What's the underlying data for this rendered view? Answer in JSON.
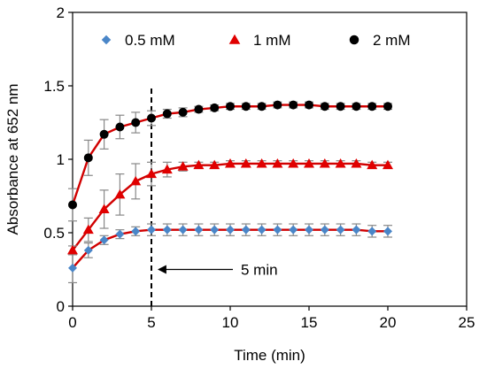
{
  "chart_data": {
    "type": "line",
    "xlabel": "Time (min)",
    "ylabel": "Absorbance at 652 nm",
    "xlim": [
      0,
      25
    ],
    "ylim": [
      0,
      2
    ],
    "x_ticks": [
      0,
      5,
      10,
      15,
      20,
      25
    ],
    "y_ticks": [
      0,
      0.5,
      1,
      1.5,
      2
    ],
    "y_tick_labels": [
      "0",
      "0.5",
      "1",
      "1.5",
      "2"
    ],
    "grid": false,
    "legend_position": "top",
    "x": [
      0,
      1,
      2,
      3,
      4,
      5,
      6,
      7,
      8,
      9,
      10,
      11,
      12,
      13,
      14,
      15,
      16,
      17,
      18,
      19,
      20
    ],
    "series": [
      {
        "name": "0.5 mM",
        "color": "#4a86c8",
        "marker": "diamond",
        "values": [
          0.26,
          0.38,
          0.45,
          0.49,
          0.51,
          0.52,
          0.52,
          0.52,
          0.52,
          0.52,
          0.52,
          0.52,
          0.52,
          0.52,
          0.52,
          0.52,
          0.52,
          0.52,
          0.52,
          0.51,
          0.51
        ],
        "errors": [
          0.1,
          0.05,
          0.03,
          0.03,
          0.03,
          0.04,
          0.04,
          0.04,
          0.04,
          0.04,
          0.04,
          0.04,
          0.04,
          0.04,
          0.04,
          0.04,
          0.04,
          0.04,
          0.04,
          0.04,
          0.04
        ]
      },
      {
        "name": "1 mM",
        "color": "#e00000",
        "marker": "triangle",
        "values": [
          0.38,
          0.52,
          0.66,
          0.76,
          0.85,
          0.9,
          0.93,
          0.95,
          0.96,
          0.96,
          0.97,
          0.97,
          0.97,
          0.97,
          0.97,
          0.97,
          0.97,
          0.97,
          0.97,
          0.96,
          0.96
        ],
        "errors": [
          0.03,
          0.08,
          0.13,
          0.14,
          0.12,
          0.08,
          0.05,
          0.03,
          0.02,
          0.02,
          0.02,
          0.02,
          0.02,
          0.02,
          0.02,
          0.02,
          0.02,
          0.02,
          0.02,
          0.02,
          0.02
        ]
      },
      {
        "name": "2 mM",
        "color": "#000000",
        "marker": "circle",
        "values": [
          0.69,
          1.01,
          1.17,
          1.22,
          1.25,
          1.28,
          1.31,
          1.32,
          1.34,
          1.35,
          1.36,
          1.36,
          1.36,
          1.37,
          1.37,
          1.37,
          1.36,
          1.36,
          1.36,
          1.36,
          1.36
        ],
        "errors": [
          0.11,
          0.12,
          0.1,
          0.08,
          0.07,
          0.05,
          0.03,
          0.03,
          0.02,
          0.02,
          0.02,
          0.02,
          0.02,
          0.02,
          0.02,
          0.02,
          0.02,
          0.02,
          0.02,
          0.02,
          0.02
        ]
      }
    ],
    "annotations": [
      {
        "type": "vline",
        "x": 5,
        "style": "dashed"
      },
      {
        "type": "arrow",
        "text": "5 min",
        "x_from": 10,
        "x_to": 5.5,
        "y": 0.25
      }
    ]
  }
}
